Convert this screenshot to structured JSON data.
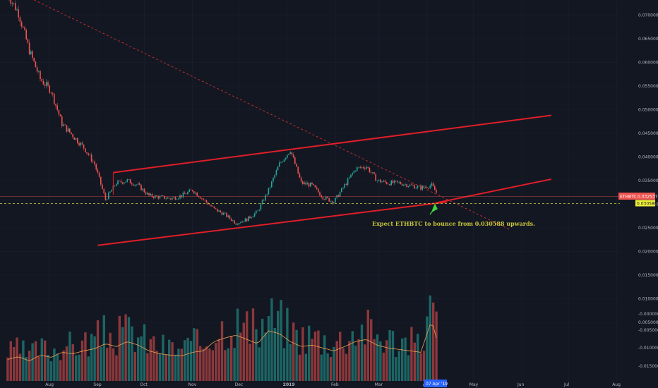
{
  "chart_data": {
    "type": "candlestick",
    "symbol_tag": "ETHBTC",
    "last_price": "0.032537",
    "support_level_label": "0.030588",
    "cursor_date": "07 Apr '19",
    "annotation": "Expect ETHBTC to bounce from 0.030588 upwards.",
    "x_ticks": [
      "Aug",
      "Sep",
      "Oct",
      "Nov",
      "Dec",
      "2019",
      "Feb",
      "Mar",
      "Apr",
      "May",
      "Jun",
      "Jul",
      "Aug"
    ],
    "price_axis": {
      "ticks": [
        "0.085000",
        "0.080000",
        "0.075000",
        "0.070000",
        "0.065000",
        "0.060000",
        "0.055000",
        "0.050000",
        "0.045000",
        "0.040000",
        "0.035000",
        "0.030000",
        "0.025000",
        "0.020000",
        "0.015000",
        "0.010000",
        "0.005000"
      ],
      "range": [
        0.002,
        0.086
      ]
    },
    "volume_axis": {
      "ticks": [
        "-0.000000",
        "-0.005000",
        "-0.010000",
        "-0.015000"
      ]
    },
    "price_series": {
      "dates": [
        "2018-07-05",
        "2018-07-12",
        "2018-07-19",
        "2018-07-26",
        "2018-08-02",
        "2018-08-09",
        "2018-08-16",
        "2018-08-23",
        "2018-08-30",
        "2018-09-06",
        "2018-09-13",
        "2018-09-20",
        "2018-09-27",
        "2018-10-04",
        "2018-10-11",
        "2018-10-18",
        "2018-10-25",
        "2018-11-01",
        "2018-11-08",
        "2018-11-15",
        "2018-11-22",
        "2018-11-29",
        "2018-12-06",
        "2018-12-13",
        "2018-12-20",
        "2018-12-27",
        "2019-01-03",
        "2019-01-10",
        "2019-01-17",
        "2019-01-24",
        "2019-01-31",
        "2019-02-07",
        "2019-02-14",
        "2019-02-21",
        "2019-02-28",
        "2019-03-07",
        "2019-03-14",
        "2019-03-21",
        "2019-03-28",
        "2019-04-04",
        "2019-04-07"
      ],
      "close": [
        0.0745,
        0.0705,
        0.0625,
        0.0565,
        0.054,
        0.047,
        0.0445,
        0.042,
        0.0385,
        0.031,
        0.0345,
        0.035,
        0.034,
        0.0318,
        0.0315,
        0.0312,
        0.0318,
        0.033,
        0.031,
        0.029,
        0.0278,
        0.026,
        0.0268,
        0.0285,
        0.033,
        0.0385,
        0.0415,
        0.0345,
        0.034,
        0.0315,
        0.0305,
        0.034,
        0.0375,
        0.038,
        0.035,
        0.0345,
        0.0345,
        0.034,
        0.0335,
        0.034,
        0.0325
      ]
    },
    "trendlines": [
      {
        "name": "channel-top",
        "from": [
          "2018-09-11",
          0.0367
        ],
        "to": [
          "2019-06-20",
          0.0488
        ]
      },
      {
        "name": "channel-bottom",
        "from": [
          "2018-09-01",
          0.0213
        ],
        "to": [
          "2019-04-14",
          0.0305
        ]
      },
      {
        "name": "support-extension",
        "from": [
          "2019-04-07",
          0.0303
        ],
        "to": [
          "2019-06-20",
          0.0353
        ]
      },
      {
        "name": "descending-resistance",
        "from": [
          "2018-06-25",
          0.0775
        ],
        "to": [
          "2019-05-25",
          0.0245
        ]
      }
    ],
    "volume_series": {
      "values": [
        0.3,
        0.34,
        0.28,
        0.36,
        0.33,
        0.4,
        0.38,
        0.42,
        0.45,
        0.52,
        0.48,
        0.55,
        0.5,
        0.42,
        0.38,
        0.36,
        0.35,
        0.4,
        0.42,
        0.55,
        0.6,
        0.64,
        0.58,
        0.52,
        0.7,
        0.66,
        0.55,
        0.48,
        0.5,
        0.46,
        0.42,
        0.48,
        0.55,
        0.58,
        0.5,
        0.46,
        0.44,
        0.42,
        0.4,
        0.85,
        0.6
      ]
    }
  }
}
